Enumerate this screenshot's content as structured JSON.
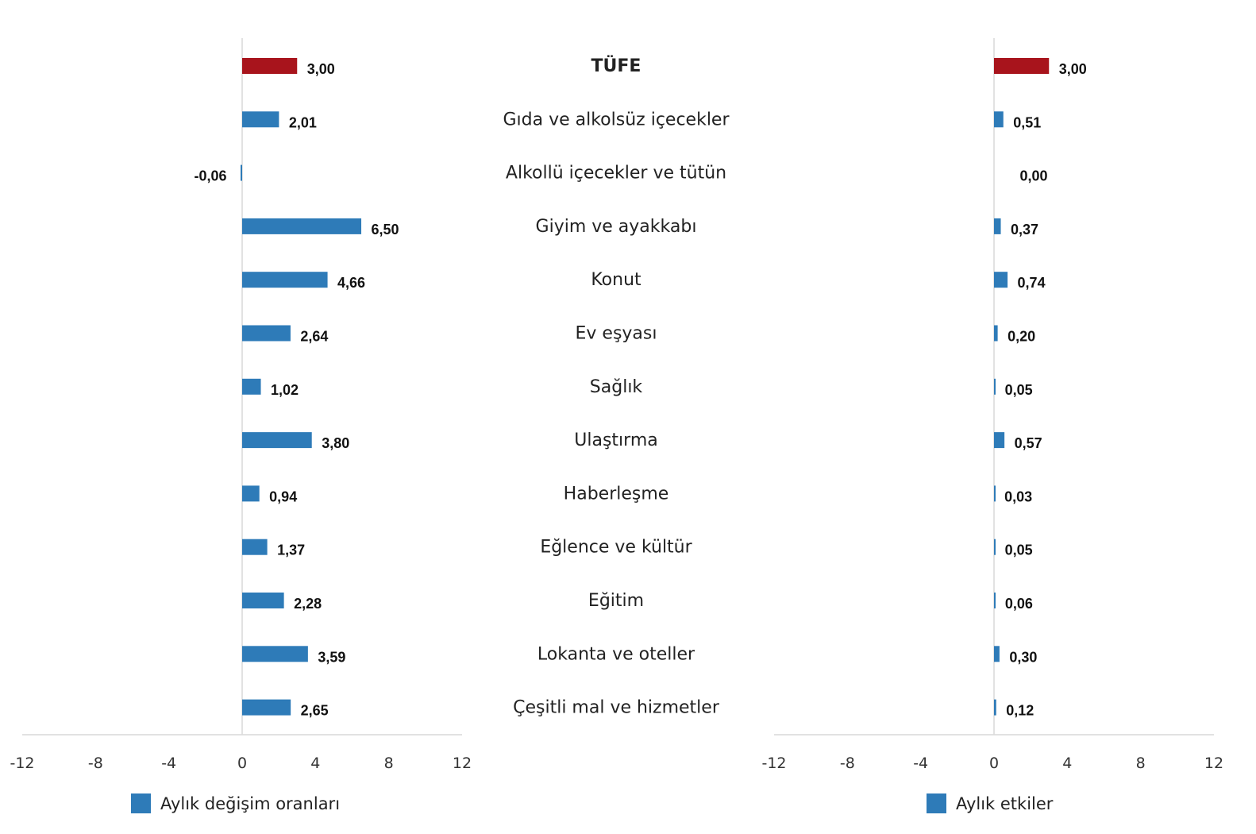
{
  "chart_data": [
    {
      "type": "bar",
      "orientation": "horizontal",
      "categories": [
        "TÜFE",
        "Gıda ve alkolsüz içecekler",
        "Alkollü içecekler ve tütün",
        "Giyim ve ayakkabı",
        "Konut",
        "Ev eşyası",
        "Sağlık",
        "Ulaştırma",
        "Haberleşme",
        "Eğlence ve kültür",
        "Eğitim",
        "Lokanta ve oteller",
        "Çeşitli mal ve hizmetler"
      ],
      "series": [
        {
          "name": "Aylık değişim oranları",
          "values": [
            3.0,
            2.01,
            -0.06,
            6.5,
            4.66,
            2.64,
            1.02,
            3.8,
            0.94,
            1.37,
            2.28,
            3.59,
            2.65
          ]
        }
      ],
      "data_labels": [
        "3,00",
        "2,01",
        "-0,06",
        "6,50",
        "4,66",
        "2,64",
        "1,02",
        "3,80",
        "0,94",
        "1,37",
        "2,28",
        "3,59",
        "2,65"
      ],
      "xlim": [
        -12,
        12
      ],
      "xticks": [
        "-12",
        "-8",
        "-4",
        "0",
        "4",
        "8",
        "12"
      ],
      "legend": "bottom",
      "grid": false
    },
    {
      "type": "bar",
      "orientation": "horizontal",
      "categories": [
        "TÜFE",
        "Gıda ve alkolsüz içecekler",
        "Alkollü içecekler ve tütün",
        "Giyim ve ayakkabı",
        "Konut",
        "Ev eşyası",
        "Sağlık",
        "Ulaştırma",
        "Haberleşme",
        "Eğlence ve kültür",
        "Eğitim",
        "Lokanta ve oteller",
        "Çeşitli mal ve hizmetler"
      ],
      "series": [
        {
          "name": "Aylık etkiler",
          "values": [
            3.0,
            0.51,
            0.0,
            0.37,
            0.74,
            0.2,
            0.05,
            0.57,
            0.03,
            0.05,
            0.06,
            0.3,
            0.12
          ]
        }
      ],
      "data_labels": [
        "3,00",
        "0,51",
        "0,00",
        "0,37",
        "0,74",
        "0,20",
        "0,05",
        "0,57",
        "0,03",
        "0,05",
        "0,06",
        "0,30",
        "0,12"
      ],
      "xlim": [
        -12,
        12
      ],
      "xticks": [
        "-12",
        "-8",
        "-4",
        "0",
        "4",
        "8",
        "12"
      ],
      "legend": "bottom",
      "grid": false
    }
  ],
  "colors": {
    "highlight": "#A8141C",
    "bar": "#2E7BB8",
    "axis": "#D9D9D9"
  }
}
